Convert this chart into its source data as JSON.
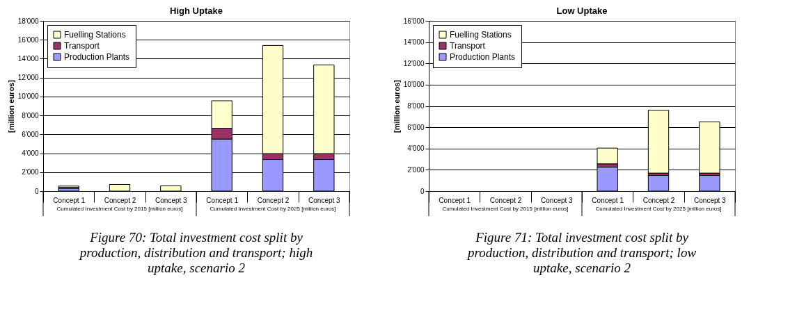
{
  "chart_data": [
    {
      "type": "bar",
      "title": "High Uptake",
      "ylabel": "[million euros]",
      "stacked": true,
      "legend": "top left",
      "grid": "y",
      "categories": [
        "Concept 1",
        "Concept 2",
        "Concept 3",
        "Concept 1",
        "Concept 2",
        "Concept 3"
      ],
      "series": [
        {
          "name": "Production Plants",
          "color": "#9999ff",
          "values": [
            300,
            null,
            null,
            5500,
            3340,
            3340
          ]
        },
        {
          "name": "Transport",
          "color": "#993366",
          "values": [
            80,
            null,
            null,
            1150,
            620,
            620
          ]
        },
        {
          "name": "Fuelling Stations",
          "color": "#ffffcc",
          "values": [
            150,
            700,
            560,
            2900,
            11440,
            9380
          ]
        }
      ],
      "ylim": [
        0,
        18000
      ],
      "yticks": [
        0,
        {
          "value": 2000,
          "label": "2'000"
        },
        {
          "value": 4000,
          "label": "4'000"
        },
        {
          "value": 6000,
          "label": "6'000"
        },
        {
          "value": 8000,
          "label": "8'000"
        },
        {
          "value": 10000,
          "label": "10'000"
        },
        {
          "value": 12000,
          "label": "12'000"
        },
        {
          "value": 14000,
          "label": "14'000"
        },
        {
          "value": 16000,
          "label": "16'000"
        },
        {
          "value": 18000,
          "label": "18'000"
        }
      ],
      "annotations": [
        "Cumulated Investment Cost by 2015 [million euros]",
        "Cumulated Investment Cost by 2025 [million euros]",
        "Figure 70: Total investment cost split by production, distribution and transport; high uptake, scenario 2"
      ]
    },
    {
      "type": "bar",
      "title": "Low Uptake",
      "ylabel": "[million euros]",
      "stacked": true,
      "legend": "top left",
      "grid": "y",
      "categories": [
        "Concept 1",
        "Concept 2",
        "Concept 3",
        "Concept 1",
        "Concept 2",
        "Concept 3"
      ],
      "series": [
        {
          "name": "Production Plants",
          "color": "#9999ff",
          "values": [
            null,
            null,
            null,
            2250,
            1470,
            1470
          ]
        },
        {
          "name": "Transport",
          "color": "#993366",
          "values": [
            null,
            null,
            null,
            310,
            220,
            220
          ]
        },
        {
          "name": "Fuelling Stations",
          "color": "#ffffcc",
          "values": [
            null,
            null,
            null,
            1480,
            5910,
            4820
          ]
        }
      ],
      "ylim": [
        0,
        16000
      ],
      "yticks": [
        0,
        {
          "value": 2000,
          "label": "2'000"
        },
        {
          "value": 4000,
          "label": "4'000"
        },
        {
          "value": 6000,
          "label": "6'000"
        },
        {
          "value": 8000,
          "label": "8'000"
        },
        {
          "value": 10000,
          "label": "10'000"
        },
        {
          "value": 12000,
          "label": "12'000"
        },
        {
          "value": 14000,
          "label": "14'000"
        },
        {
          "value": 16000,
          "label": "16'000"
        }
      ],
      "annotations": [
        "Cumulated Investment Cost by 2015 [million euros]",
        "Cumulated Investment Cost by 2025 [million euros]",
        "Figure 71: Total investment cost split by production, distribution and transport; low uptake, scenario 2"
      ]
    }
  ]
}
